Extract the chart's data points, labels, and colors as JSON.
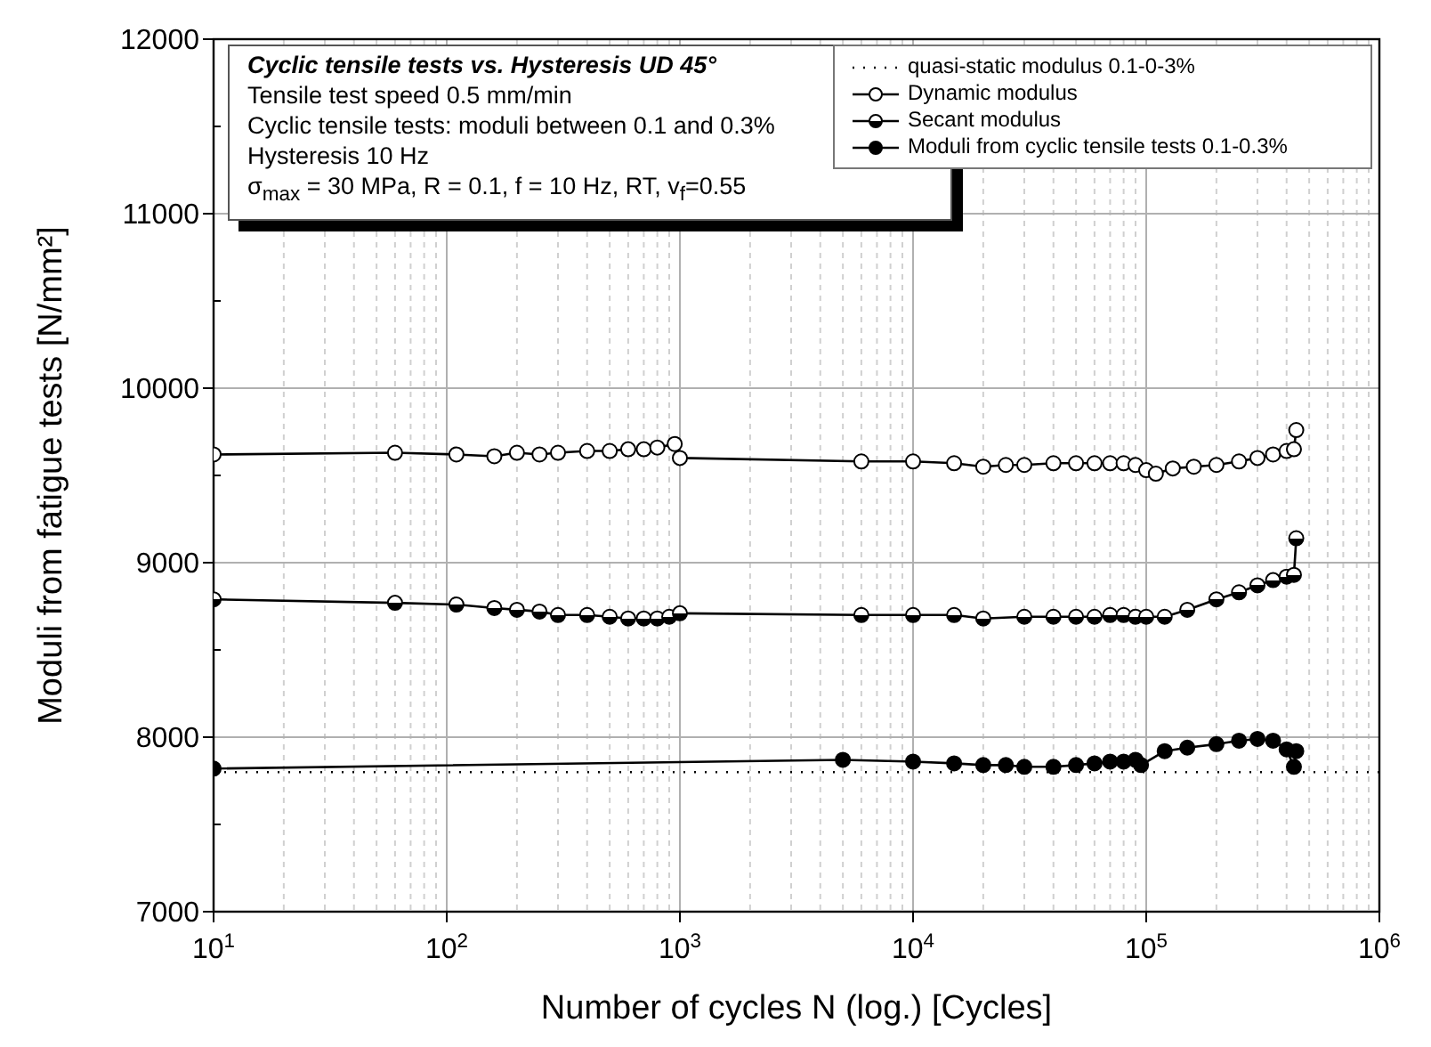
{
  "chart_data": {
    "type": "line",
    "xlabel": "Number of cycles N (log.) [Cycles]",
    "ylabel": "Moduli from fatigue tests [N/mm²]",
    "annotations": [
      "Cyclic tensile tests vs. Hysteresis UD 45°",
      "Tensile test speed 0.5 mm/min",
      "Cyclic tensile tests: moduli between 0.1 and 0.3%",
      "Hysteresis 10 Hz",
      "σ$_{max}$ = 30 MPa, R = 0.1, f = 10 Hz, RT, v$_{f}$=0.55"
    ],
    "log": "x",
    "grid": true,
    "legend": "top right",
    "xlim": [
      10,
      1000000
    ],
    "xticks": [
      {
        "value": 10,
        "label": "10$^{1}$"
      },
      {
        "value": 100,
        "label": "10$^{2}$"
      },
      {
        "value": 1000,
        "label": "10$^{3}$"
      },
      {
        "value": 10000,
        "label": "10$^{4}$"
      },
      {
        "value": 100000,
        "label": "10$^{5}$"
      },
      {
        "value": 1000000,
        "label": "10$^{6}$"
      }
    ],
    "ylim": [
      7000,
      12000
    ],
    "yticks": [
      7000,
      8000,
      9000,
      10000,
      11000,
      12000
    ],
    "series": [
      {
        "name": "quasi-static modulus 0.1-0-3%",
        "color": "#000000",
        "marker": "none",
        "line_style": "dotted",
        "x": [
          10,
          1000000
        ],
        "values": [
          7800,
          7800
        ]
      },
      {
        "name": "Dynamic modulus",
        "color": "#000000",
        "marker": "circle",
        "line_style": "solid",
        "x": [
          10,
          60,
          110,
          160,
          200,
          250,
          300,
          400,
          500,
          600,
          700,
          800,
          950,
          1000,
          6000,
          10000,
          15000,
          20000,
          25000,
          30000,
          40000,
          50000,
          60000,
          70000,
          80000,
          90000,
          100000,
          110000,
          130000,
          160000,
          200000,
          250000,
          300000,
          350000,
          400000,
          430000,
          440000
        ],
        "values": [
          9620,
          9630,
          9620,
          9610,
          9630,
          9620,
          9630,
          9640,
          9640,
          9650,
          9650,
          9660,
          9680,
          9600,
          9580,
          9580,
          9570,
          9550,
          9560,
          9560,
          9570,
          9570,
          9570,
          9570,
          9570,
          9560,
          9530,
          9510,
          9540,
          9550,
          9560,
          9580,
          9600,
          9620,
          9640,
          9650,
          9760
        ]
      },
      {
        "name": "Secant modulus",
        "color": "#000000",
        "marker": "circle",
        "line_style": "solid",
        "x": [
          10,
          60,
          110,
          160,
          200,
          250,
          300,
          400,
          500,
          600,
          700,
          800,
          900,
          1000,
          6000,
          10000,
          15000,
          20000,
          30000,
          40000,
          50000,
          60000,
          70000,
          80000,
          90000,
          100000,
          120000,
          150000,
          200000,
          250000,
          300000,
          350000,
          400000,
          430000,
          440000
        ],
        "values": [
          8790,
          8770,
          8760,
          8740,
          8730,
          8720,
          8700,
          8700,
          8690,
          8680,
          8680,
          8680,
          8690,
          8710,
          8700,
          8700,
          8700,
          8680,
          8690,
          8690,
          8690,
          8690,
          8700,
          8700,
          8690,
          8690,
          8690,
          8730,
          8790,
          8830,
          8870,
          8900,
          8920,
          8930,
          9140
        ]
      },
      {
        "name": "Moduli from cyclic tensile tests 0.1-0.3%",
        "color": "#000000",
        "marker": "circle",
        "line_style": "solid",
        "x": [
          10,
          5000,
          10000,
          15000,
          20000,
          25000,
          30000,
          40000,
          50000,
          60000,
          70000,
          80000,
          90000,
          95000,
          120000,
          150000,
          200000,
          250000,
          300000,
          350000,
          400000,
          430000,
          440000
        ],
        "values": [
          7820,
          7870,
          7860,
          7850,
          7840,
          7840,
          7830,
          7830,
          7840,
          7850,
          7860,
          7860,
          7870,
          7840,
          7920,
          7940,
          7960,
          7980,
          7990,
          7980,
          7930,
          7830,
          7920
        ]
      }
    ]
  }
}
